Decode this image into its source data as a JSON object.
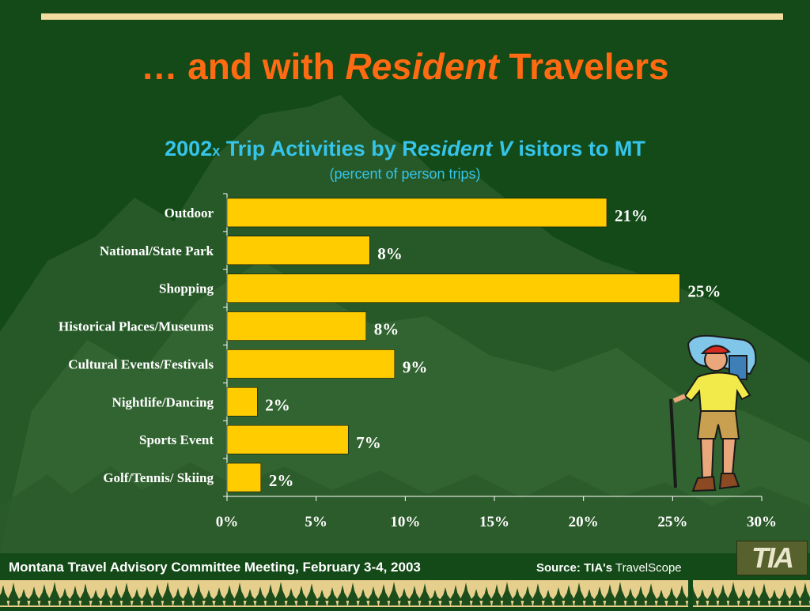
{
  "slide": {
    "title_prefix": "… and with ",
    "title_italic": "Resident",
    "title_suffix": " Travelers",
    "footer_text": "Montana Travel Advisory Committee Meeting, February 3-4, 2003",
    "source_label": "Source: TIA's",
    "source_name": "TravelScope",
    "logo_text": "TIA"
  },
  "chart_data": {
    "type": "bar",
    "orientation": "horizontal",
    "title_parts": {
      "year": "2002",
      "year_suffix": "x",
      "part1": " Trip Activities by R",
      "italic1": "esident V",
      "part2": " isitors to MT"
    },
    "subtitle": "(percent of person trips)",
    "categories": [
      "Outdoor",
      "National/State Park",
      "Shopping",
      "Historical Places/Museums",
      "Cultural Events/Festivals",
      "Nightlife/Dancing",
      "Sports Event",
      "Golf/Tennis/ Skiing"
    ],
    "values": [
      21.3,
      8.0,
      25.4,
      7.8,
      9.4,
      1.7,
      6.8,
      1.9
    ],
    "data_labels": [
      "21%",
      "8%",
      "25%",
      "8%",
      "9%",
      "2%",
      "7%",
      "2%"
    ],
    "xticks": [
      0,
      5,
      10,
      15,
      20,
      25,
      30
    ],
    "xtick_labels": [
      "0%",
      "5%",
      "10%",
      "15%",
      "20%",
      "25%",
      "30%"
    ],
    "xlim": [
      0,
      30
    ],
    "grid": false,
    "bar_color": "#ffcc00",
    "bar_border": "#000000",
    "label_color": "#ffffff"
  },
  "colors": {
    "background": "#134a17",
    "title": "#ff6a12",
    "chart_title": "#36c4ea",
    "accent_line": "#f2dca0"
  },
  "icons": [
    "mountain-background",
    "hiker-clipart-icon",
    "tia-logo",
    "pine-tree-border"
  ]
}
